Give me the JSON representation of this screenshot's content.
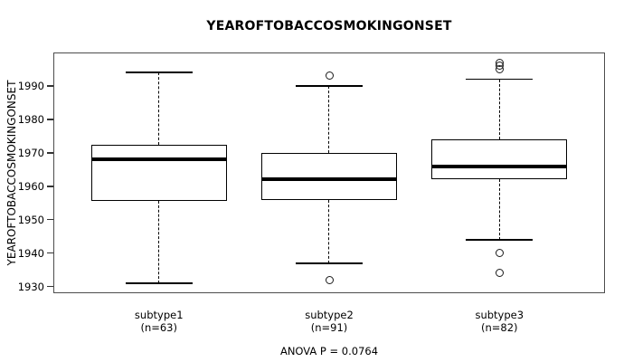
{
  "colors": {
    "line": "#000000",
    "plot_border": "#4d4d4d",
    "background": "#ffffff"
  },
  "chart_data": {
    "type": "boxplot",
    "title": "YEAROFTOBACCOSMOKINGONSET",
    "ylabel": "YEAROFTOBACCOSMOKINGONSET",
    "xlabel": "",
    "ylim": [
      1928,
      2000
    ],
    "yticks": [
      1930,
      1940,
      1950,
      1960,
      1970,
      1980,
      1990
    ],
    "grid": false,
    "annotation": "ANOVA P = 0.0764",
    "groups": [
      {
        "label": "subtype1",
        "sublabel": "(n=63)",
        "n": 63,
        "whisker_low": 1931,
        "q1": 1955.5,
        "median": 1968,
        "q3": 1972.5,
        "whisker_high": 1994,
        "outliers": []
      },
      {
        "label": "subtype2",
        "sublabel": "(n=91)",
        "n": 91,
        "whisker_low": 1937,
        "q1": 1956,
        "median": 1962,
        "q3": 1970,
        "whisker_high": 1990,
        "outliers": [
          1993,
          1932
        ]
      },
      {
        "label": "subtype3",
        "sublabel": "(n=82)",
        "n": 82,
        "whisker_low": 1944,
        "q1": 1962,
        "median": 1966,
        "q3": 1974,
        "whisker_high": 1992,
        "outliers": [
          1997,
          1996,
          1995,
          1940,
          1934
        ]
      }
    ]
  }
}
